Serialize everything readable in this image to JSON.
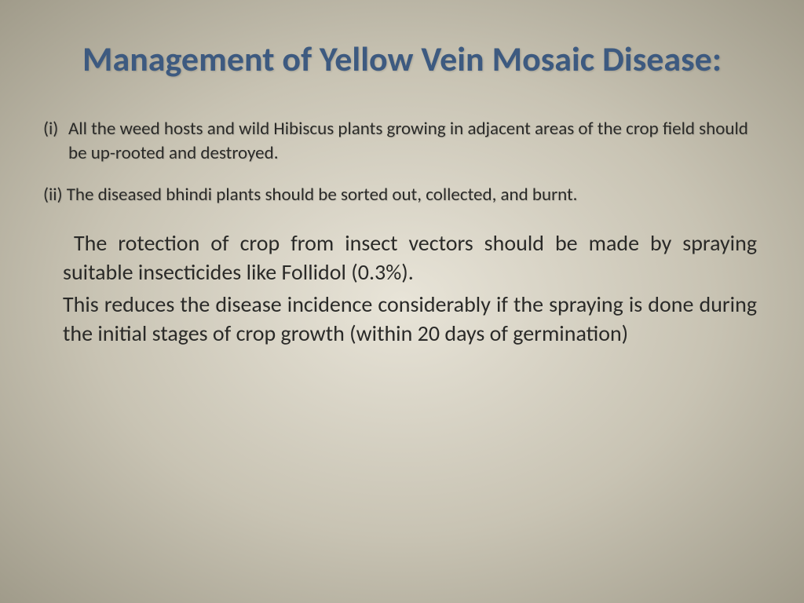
{
  "title": "Management of Yellow Vein Mosaic Disease:",
  "title_color": "#3d5a80",
  "body_color": "#2a2a28",
  "items": [
    {
      "marker": "(i)",
      "text": "All the weed hosts and wild Hibiscus plants growing in adjacent areas of the crop field should be up-rooted and destroyed."
    },
    {
      "marker": "(ii)",
      "text": "The diseased bhindi plants should be sorted out, collected, and burnt."
    }
  ],
  "paragraphs": [
    "The rotection of crop from insect vectors should be made by spraying suitable insecticides like Follidol (0.3%).",
    "This reduces the disease incidence considerably if the spraying is done during the initial stages of crop growth (within 20 days of germination)"
  ]
}
